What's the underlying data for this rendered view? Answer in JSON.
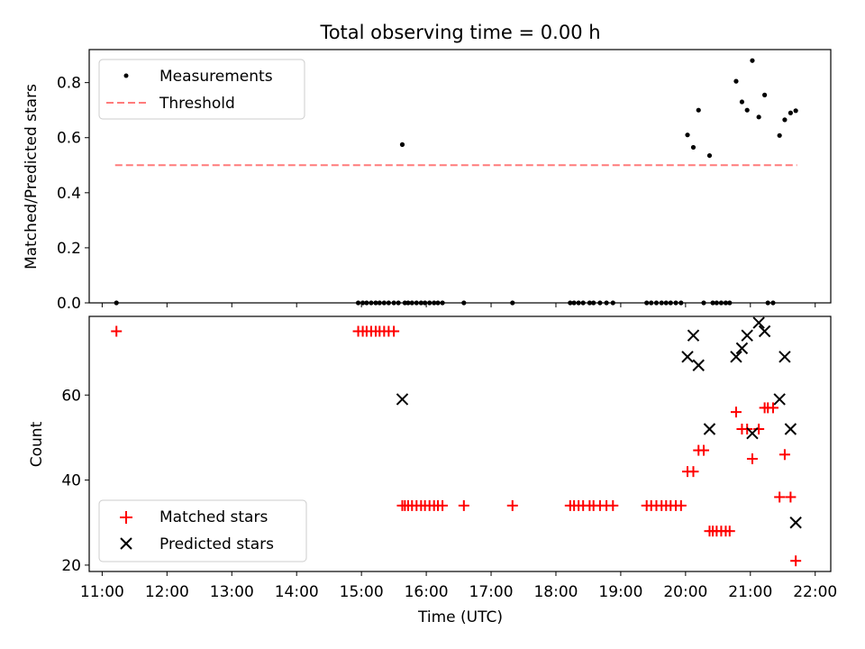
{
  "chart_data": [
    {
      "type": "scatter",
      "title": "Total observing time = 0.00 h",
      "xlabel": "",
      "ylabel": "Matched/Predicted stars",
      "xlim": [
        10.8,
        22.24
      ],
      "ylim": [
        0,
        0.92
      ],
      "yticks": [
        0.0,
        0.2,
        0.4,
        0.6,
        0.8
      ],
      "ytick_labels": [
        "0.0",
        "0.2",
        "0.4",
        "0.6",
        "0.8"
      ],
      "grid": false,
      "legend": {
        "position": "top-left",
        "entries": [
          "Measurements",
          "Threshold"
        ]
      },
      "series": [
        {
          "name": "Measurements",
          "marker": "dot",
          "color": "#000000",
          "x": [
            11.22,
            14.95,
            15.02,
            15.08,
            15.15,
            15.22,
            15.28,
            15.35,
            15.42,
            15.5,
            15.57,
            15.63,
            15.67,
            15.72,
            15.78,
            15.85,
            15.92,
            15.98,
            16.05,
            16.12,
            16.18,
            16.25,
            16.58,
            17.33,
            18.22,
            18.28,
            18.35,
            18.42,
            18.52,
            18.58,
            18.68,
            18.78,
            18.88,
            19.4,
            19.47,
            19.55,
            19.63,
            19.7,
            19.77,
            19.85,
            19.93,
            20.03,
            20.12,
            20.2,
            20.28,
            20.37,
            20.42,
            20.48,
            20.55,
            20.62,
            20.68,
            20.78,
            20.87,
            20.95,
            21.03,
            21.13,
            21.22,
            21.27,
            21.35,
            21.45,
            21.53,
            21.62,
            21.7
          ],
          "y": [
            0,
            0,
            0,
            0,
            0,
            0,
            0,
            0,
            0,
            0,
            0,
            0.575,
            0,
            0,
            0,
            0,
            0,
            0,
            0,
            0,
            0,
            0,
            0,
            0,
            0,
            0,
            0,
            0,
            0,
            0,
            0,
            0,
            0,
            0,
            0,
            0,
            0,
            0,
            0,
            0,
            0,
            0.61,
            0.565,
            0.7,
            0,
            0.535,
            0,
            0,
            0,
            0,
            0,
            0.805,
            0.73,
            0.7,
            0.88,
            0.675,
            0.755,
            0,
            0,
            0.608,
            0.665,
            0.69,
            0.698
          ]
        },
        {
          "name": "Threshold",
          "line": "dashed",
          "color": "#ff7b7b",
          "x": [
            11.2,
            21.72
          ],
          "y": [
            0.5,
            0.5
          ]
        }
      ]
    },
    {
      "type": "scatter",
      "title": "",
      "xlabel": "Time (UTC)",
      "ylabel": "Count",
      "xlim": [
        10.8,
        22.24
      ],
      "ylim": [
        18.5,
        78.5
      ],
      "yticks": [
        20,
        40,
        60
      ],
      "ytick_labels": [
        "20",
        "40",
        "60"
      ],
      "xticks": [
        11,
        12,
        13,
        14,
        15,
        16,
        17,
        18,
        19,
        20,
        21,
        22
      ],
      "xtick_labels": [
        "11:00",
        "12:00",
        "13:00",
        "14:00",
        "15:00",
        "16:00",
        "17:00",
        "18:00",
        "19:00",
        "20:00",
        "21:00",
        "22:00"
      ],
      "grid": false,
      "legend": {
        "position": "bottom-left",
        "entries": [
          "Matched stars",
          "Predicted stars"
        ]
      },
      "series": [
        {
          "name": "Matched stars",
          "marker": "plus",
          "color": "#ff0000",
          "x": [
            11.22,
            14.95,
            15.02,
            15.08,
            15.15,
            15.22,
            15.28,
            15.35,
            15.42,
            15.5,
            15.63,
            15.67,
            15.72,
            15.78,
            15.85,
            15.92,
            15.98,
            16.05,
            16.12,
            16.18,
            16.25,
            16.58,
            17.33,
            18.22,
            18.28,
            18.35,
            18.42,
            18.52,
            18.58,
            18.68,
            18.78,
            18.88,
            19.4,
            19.47,
            19.55,
            19.63,
            19.7,
            19.77,
            19.85,
            19.93,
            20.03,
            20.12,
            20.2,
            20.28,
            20.37,
            20.42,
            20.48,
            20.55,
            20.62,
            20.68,
            20.78,
            20.87,
            20.95,
            21.03,
            21.13,
            21.22,
            21.27,
            21.35,
            21.45,
            21.53,
            21.62,
            21.7
          ],
          "y": [
            75,
            75,
            75,
            75,
            75,
            75,
            75,
            75,
            75,
            75,
            34,
            34,
            34,
            34,
            34,
            34,
            34,
            34,
            34,
            34,
            34,
            34,
            34,
            34,
            34,
            34,
            34,
            34,
            34,
            34,
            34,
            34,
            34,
            34,
            34,
            34,
            34,
            34,
            34,
            34,
            42,
            42,
            47,
            47,
            28,
            28,
            28,
            28,
            28,
            28,
            56,
            52,
            52,
            45,
            52,
            57,
            57,
            57,
            36,
            46,
            36,
            21
          ]
        },
        {
          "name": "Predicted stars",
          "marker": "x",
          "color": "#000000",
          "x": [
            15.63,
            20.03,
            20.12,
            20.2,
            20.37,
            20.78,
            20.87,
            20.95,
            21.03,
            21.13,
            21.22,
            21.45,
            21.53,
            21.62,
            21.7
          ],
          "y": [
            59,
            69,
            74,
            67,
            52,
            69,
            71,
            74,
            51,
            77,
            75,
            59,
            69,
            52,
            30
          ]
        }
      ]
    }
  ]
}
